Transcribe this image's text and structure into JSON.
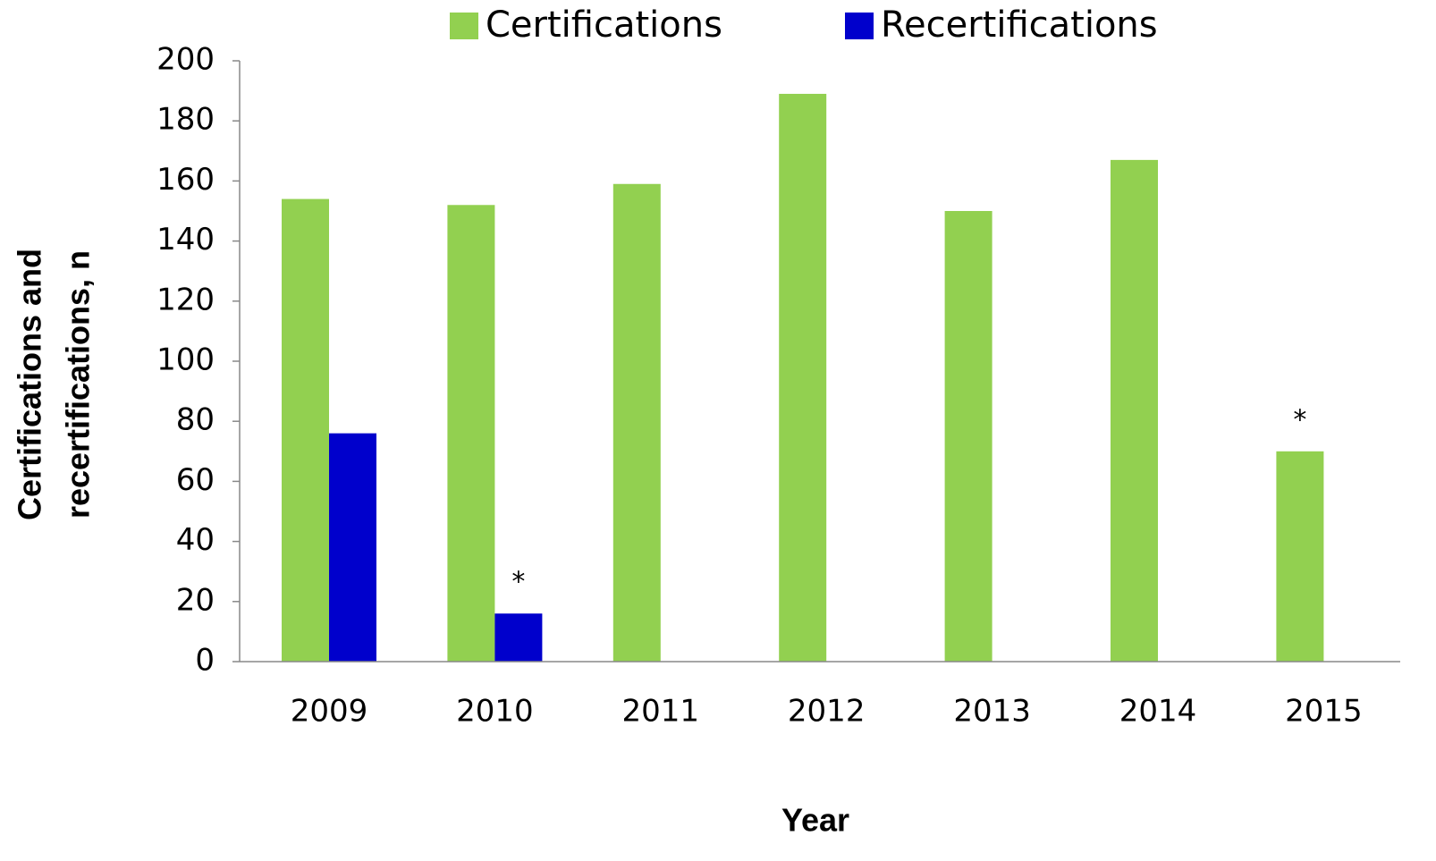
{
  "chart_data": {
    "type": "bar",
    "categories": [
      "2009",
      "2010",
      "2011",
      "2012",
      "2013",
      "2014",
      "2015"
    ],
    "series": [
      {
        "name": "Certifications",
        "color": "#92d050",
        "values": [
          154,
          152,
          159,
          189,
          150,
          167,
          70
        ]
      },
      {
        "name": "Recertifications",
        "color": "#0000cc",
        "values": [
          76,
          16,
          null,
          null,
          null,
          null,
          null
        ]
      }
    ],
    "ylim": [
      0,
      200
    ],
    "yticks": [
      0,
      20,
      40,
      60,
      80,
      100,
      120,
      140,
      160,
      180,
      200
    ],
    "ylabel": [
      "Certifications and",
      "recertifications, n"
    ],
    "xlabel": "Year",
    "legend": "top",
    "annotations": [
      {
        "text": "*",
        "category": "2010",
        "series": "Recertifications"
      },
      {
        "text": "*",
        "category": "2015",
        "series": "Certifications"
      }
    ]
  }
}
